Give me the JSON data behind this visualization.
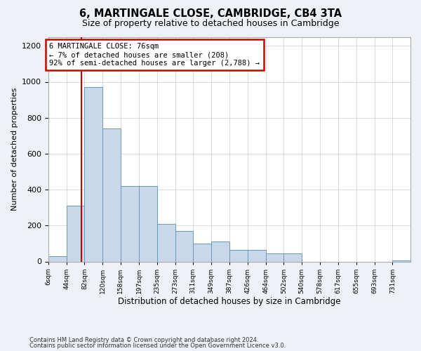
{
  "title": "6, MARTINGALE CLOSE, CAMBRIDGE, CB4 3TA",
  "subtitle": "Size of property relative to detached houses in Cambridge",
  "xlabel": "Distribution of detached houses by size in Cambridge",
  "ylabel": "Number of detached properties",
  "annotation_line1": "6 MARTINGALE CLOSE: 76sqm",
  "annotation_line2": "← 7% of detached houses are smaller (208)",
  "annotation_line3": "92% of semi-detached houses are larger (2,788) →",
  "property_size": 76,
  "bar_color": "#c8d8e8",
  "bar_edge_color": "#6699bb",
  "vline_color": "#cc0000",
  "annotation_box_color": "#cc0000",
  "bins": [
    6,
    44,
    82,
    120,
    158,
    197,
    235,
    273,
    311,
    349,
    387,
    426,
    464,
    502,
    540,
    578,
    617,
    655,
    693,
    731,
    769
  ],
  "counts": [
    30,
    310,
    970,
    740,
    420,
    420,
    210,
    170,
    100,
    110,
    65,
    65,
    45,
    45,
    0,
    0,
    0,
    0,
    0,
    5
  ],
  "ylim": [
    0,
    1250
  ],
  "yticks": [
    0,
    200,
    400,
    600,
    800,
    1000,
    1200
  ],
  "footer_line1": "Contains HM Land Registry data © Crown copyright and database right 2024.",
  "footer_line2": "Contains public sector information licensed under the Open Government Licence v3.0.",
  "background_color": "#eef2f7",
  "plot_background_color": "#ffffff"
}
